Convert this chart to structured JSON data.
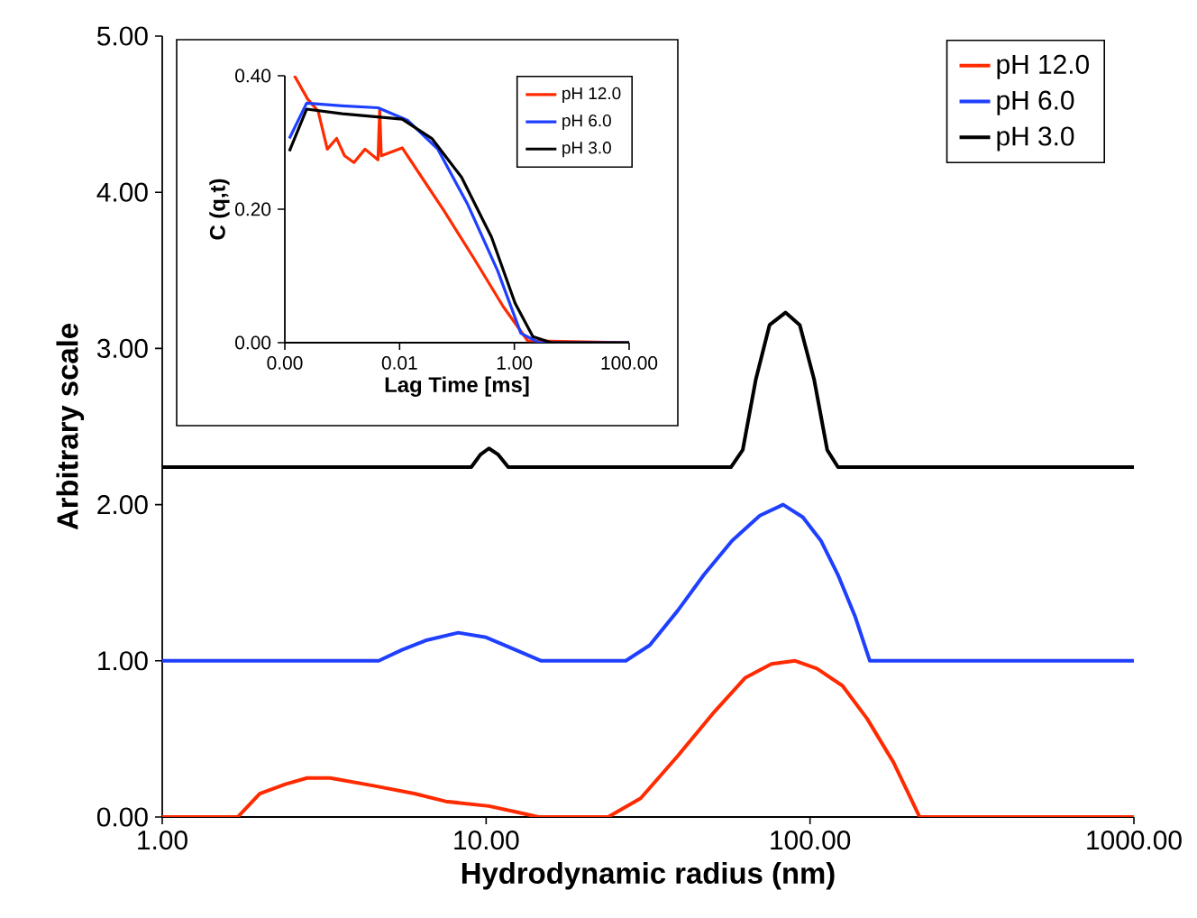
{
  "chart_data": [
    {
      "type": "line",
      "xlabel": "Hydrodynamic radius (nm)",
      "ylabel": "Arbitrary scale",
      "log": "x",
      "xlim": [
        1,
        1000
      ],
      "ylim": [
        0,
        5
      ],
      "xticks": [
        {
          "value": 1,
          "label": "1.00"
        },
        {
          "value": 10,
          "label": "10.00"
        },
        {
          "value": 100,
          "label": "100.00"
        },
        {
          "value": 1000,
          "label": "1000.00"
        }
      ],
      "yticks": [
        {
          "value": 0,
          "label": "0.00"
        },
        {
          "value": 1,
          "label": "1.00"
        },
        {
          "value": 2,
          "label": "2.00"
        },
        {
          "value": 3,
          "label": "3.00"
        },
        {
          "value": 4,
          "label": "4.00"
        },
        {
          "value": 5,
          "label": "5.00"
        }
      ],
      "legend": "top right",
      "series": [
        {
          "name": "pH 12.0",
          "color": "#ff2a00",
          "x": [
            1,
            1.71,
            2.0,
            2.4,
            2.8,
            3.3,
            4.5,
            6.0,
            7.5,
            10.2,
            12.5,
            14.5,
            23.8,
            30,
            39,
            50,
            63,
            76,
            90,
            105,
            126,
            150,
            181,
            218,
            300,
            1000
          ],
          "values": [
            0,
            0,
            0.15,
            0.21,
            0.25,
            0.25,
            0.2,
            0.15,
            0.1,
            0.07,
            0.03,
            0,
            0,
            0.12,
            0.39,
            0.66,
            0.89,
            0.98,
            1.0,
            0.95,
            0.84,
            0.63,
            0.35,
            0,
            0,
            0
          ]
        },
        {
          "name": "pH 6.0",
          "color": "#1f3fff",
          "x": [
            1,
            4.66,
            5.5,
            6.5,
            8.2,
            10,
            12,
            14.8,
            27,
            32,
            39,
            47,
            57.5,
            70,
            82.6,
            95,
            108,
            122,
            138,
            153,
            1000
          ],
          "values": [
            1,
            1,
            1.07,
            1.13,
            1.18,
            1.15,
            1.08,
            1,
            1,
            1.1,
            1.32,
            1.55,
            1.77,
            1.93,
            2.0,
            1.92,
            1.77,
            1.55,
            1.28,
            1,
            1
          ]
        },
        {
          "name": "pH 3.0",
          "color": "#000000",
          "x": [
            1,
            9.0,
            9.6,
            10.2,
            10.9,
            11.7,
            57,
            62,
            68,
            75,
            84,
            93,
            103,
            113,
            122,
            1000
          ],
          "values": [
            2.24,
            2.24,
            2.32,
            2.36,
            2.32,
            2.24,
            2.24,
            2.35,
            2.8,
            3.15,
            3.23,
            3.15,
            2.8,
            2.35,
            2.24,
            2.24
          ]
        }
      ]
    },
    {
      "type": "line",
      "xlabel": "Lag Time [ms]",
      "ylabel": "C (q,t)",
      "log": "x",
      "xlim": [
        0.0001,
        100
      ],
      "ylim": [
        0,
        0.4
      ],
      "xticks": [
        {
          "value": 0.0001,
          "label": "0.00"
        },
        {
          "value": 0.01,
          "label": "0.01"
        },
        {
          "value": 1,
          "label": "1.00"
        },
        {
          "value": 100,
          "label": "100.00"
        }
      ],
      "yticks": [
        {
          "value": 0,
          "label": "0.00"
        },
        {
          "value": 0.2,
          "label": "0.20"
        },
        {
          "value": 0.4,
          "label": "0.40"
        }
      ],
      "legend": "top right",
      "series": [
        {
          "name": "pH 12.0",
          "color": "#ff2a00",
          "x": [
            0.000147,
            0.00025,
            0.00038,
            0.00055,
            0.0008,
            0.0011,
            0.0016,
            0.0025,
            0.0042,
            0.0045,
            0.0048,
            0.0111,
            0.0226,
            0.059,
            0.195,
            0.64,
            1.7,
            100
          ],
          "values": [
            0.4,
            0.365,
            0.347,
            0.29,
            0.306,
            0.28,
            0.27,
            0.29,
            0.274,
            0.35,
            0.28,
            0.292,
            0.252,
            0.198,
            0.127,
            0.054,
            0.003,
            0
          ]
        },
        {
          "name": "pH 6.0",
          "color": "#1f3fff",
          "x": [
            0.00012,
            0.00024,
            0.001,
            0.0042,
            0.0139,
            0.0464,
            0.154,
            0.51,
            1.3,
            2.7,
            100
          ],
          "values": [
            0.306,
            0.359,
            0.355,
            0.352,
            0.333,
            0.29,
            0.207,
            0.108,
            0.014,
            0,
            0
          ]
        },
        {
          "name": "pH 3.0",
          "color": "#000000",
          "x": [
            0.00012,
            0.00024,
            0.001,
            0.0111,
            0.0365,
            0.12,
            0.4,
            1.03,
            2.1,
            4.4,
            100
          ],
          "values": [
            0.287,
            0.35,
            0.343,
            0.335,
            0.306,
            0.248,
            0.158,
            0.059,
            0.009,
            0,
            0
          ]
        }
      ]
    }
  ]
}
